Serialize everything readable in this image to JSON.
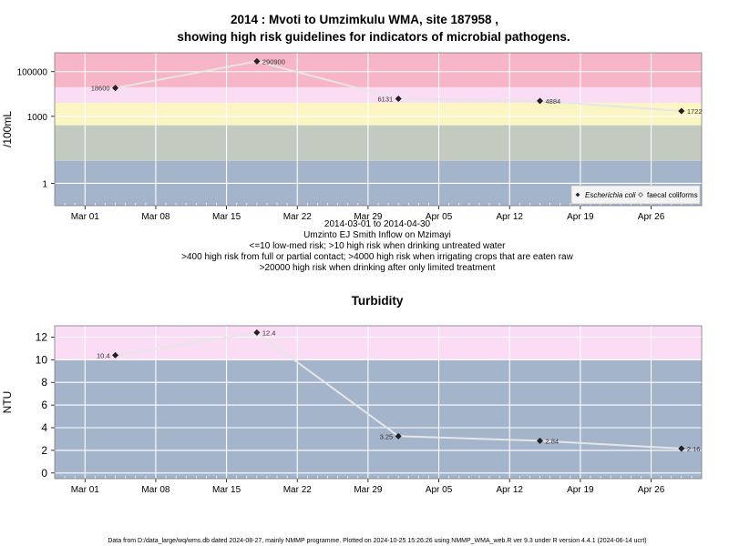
{
  "chart_data": [
    {
      "type": "line",
      "title": "2014 : Mvoti to Umzimkulu WMA, site 187958 ,",
      "title_line2": "showing high risk guidelines for indicators of microbial pathogens.",
      "ylabel": "/100mL",
      "y_scale": "log",
      "ylim": [
        0.1,
        700000
      ],
      "yticks": [
        "1",
        "1000",
        "100000"
      ],
      "xlim": [
        "2014-02-26",
        "2014-05-01"
      ],
      "xticks": [
        "Mar 01",
        "Mar 08",
        "Mar 15",
        "Mar 22",
        "Mar 29",
        "Apr 05",
        "Apr 12",
        "Apr 19",
        "Apr 26"
      ],
      "grid": true,
      "bands": [
        {
          "from": 0.1,
          "to": 10,
          "color": "#a3b4cb"
        },
        {
          "from": 10,
          "to": 400,
          "color": "#c3cbc1"
        },
        {
          "from": 400,
          "to": 4000,
          "color": "#fbf5c4"
        },
        {
          "from": 4000,
          "to": 20000,
          "color": "#fadcf5"
        },
        {
          "from": 20000,
          "to": 700000,
          "color": "#f6b6c7"
        }
      ],
      "series": [
        {
          "name": "Escherichia coli",
          "x": [
            "2014-03-04",
            "2014-03-18",
            "2014-04-01",
            "2014-04-15",
            "2014-04-29"
          ],
          "values": [
            18600,
            290900,
            6131,
            4884,
            1722
          ],
          "labels": [
            "18600",
            "290900",
            "6131",
            "4884",
            "1722"
          ],
          "label_side": [
            "left",
            "right",
            "left",
            "right",
            "right"
          ]
        }
      ],
      "legend": {
        "placement": "bottom-right",
        "entries": [
          {
            "marker": "filled-diamond",
            "label": "Escherichia coli"
          },
          {
            "marker": "open-diamond",
            "label": "faecal coliforms"
          }
        ]
      },
      "subtitle_lines": [
        "2014-03-01 to 2014-04-30",
        "Umzinto EJ Smith Inflow on Mzimayi",
        "<=10 low-med risk; >10 high risk when drinking untreated water",
        ">400 high risk from full or partial contact; >4000 high risk when irrigating crops that are eaten raw",
        ">20000 high risk when drinking after only limited treatment"
      ]
    },
    {
      "type": "line",
      "title": "Turbidity",
      "ylabel": "NTU",
      "ylim": [
        -0.5,
        13
      ],
      "yticks": [
        "0",
        "2",
        "4",
        "6",
        "8",
        "10",
        "12"
      ],
      "xlim": [
        "2014-02-26",
        "2014-05-01"
      ],
      "xticks": [
        "Mar 01",
        "Mar 08",
        "Mar 15",
        "Mar 22",
        "Mar 29",
        "Apr 05",
        "Apr 12",
        "Apr 19",
        "Apr 26"
      ],
      "grid": true,
      "bands": [
        {
          "from": -0.5,
          "to": 10,
          "color": "#a3b4cb"
        },
        {
          "from": 10,
          "to": 13,
          "color": "#fadcf5"
        }
      ],
      "series": [
        {
          "x": [
            "2014-03-04",
            "2014-03-18",
            "2014-04-01",
            "2014-04-15",
            "2014-04-29"
          ],
          "values": [
            10.4,
            12.4,
            3.25,
            2.84,
            2.16
          ],
          "labels": [
            "10.4",
            "12.4",
            "3.25",
            "2.84",
            "2.16"
          ],
          "label_side": [
            "left",
            "right",
            "left",
            "right",
            "right"
          ]
        }
      ]
    }
  ],
  "footer": "Data from D:/data_large/wq/wms.db dated 2024-08-27, mainly NMMP programme. Plotted on 2024-10-25 15:26:26 using NMMP_WMA_web.R ver 9.3 under R version 4.4.1 (2024-06-14 ucrt)"
}
